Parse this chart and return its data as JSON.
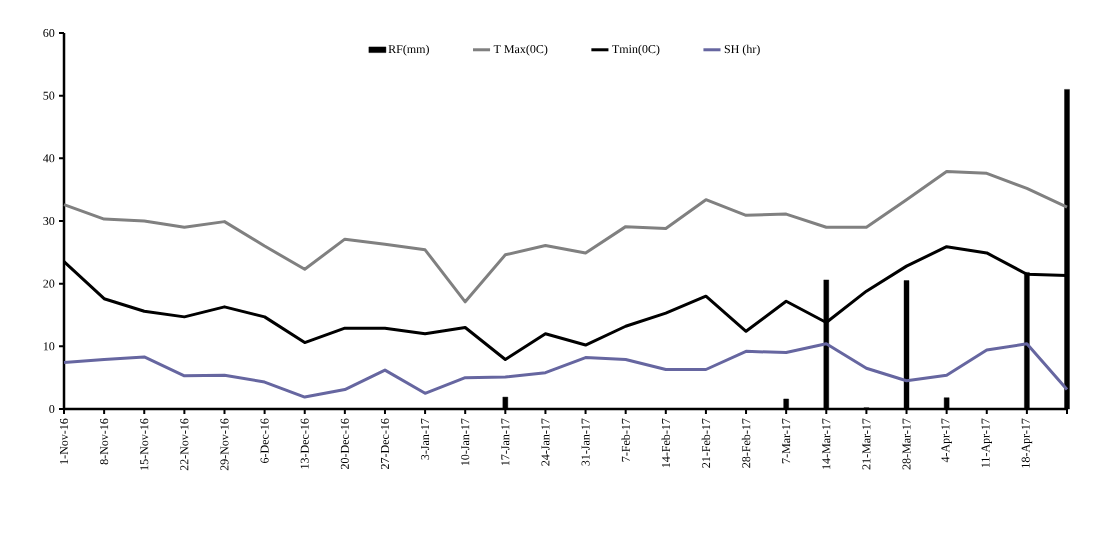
{
  "chart_data": {
    "type": "line",
    "categories": [
      "1-Nov-16",
      "8-Nov-16",
      "15-Nov-16",
      "22-Nov-16",
      "29-Nov-16",
      "6-Dec-16",
      "13-Dec-16",
      "20-Dec-16",
      "27-Dec-16",
      "3-Jan-17",
      "10-Jan-17",
      "17-Jan-17",
      "24-Jan-17",
      "31-Jan-17",
      "7-Feb-17",
      "14-Feb-17",
      "21-Feb-17",
      "28-Feb-17",
      "7-Mar-17",
      "14-Mar-17",
      "21-Mar-17",
      "28-Mar-17",
      "4-Apr-17",
      "11-Apr-17",
      "18-Apr-17",
      null
    ],
    "series": [
      {
        "name": "RF(mm)",
        "type": "bar",
        "color": "#000000",
        "values": [
          0,
          0,
          0,
          0,
          0,
          0,
          0,
          0,
          0,
          0,
          0,
          1.9,
          0,
          0,
          0,
          0,
          0,
          0,
          1.6,
          20.6,
          0.2,
          20.5,
          1.8,
          0,
          21.8,
          51.0
        ]
      },
      {
        "name": "T Max(0C)",
        "color": "#808080",
        "values": [
          32.6,
          30.3,
          30.0,
          29.0,
          29.9,
          26.0,
          22.3,
          27.1,
          26.3,
          25.4,
          17.1,
          24.6,
          26.1,
          24.9,
          29.1,
          28.8,
          33.4,
          30.9,
          31.1,
          29.0,
          29.0,
          33.4,
          37.9,
          37.6,
          35.2,
          32.2
        ]
      },
      {
        "name": "Tmin(0C)",
        "color": "#000000",
        "values": [
          23.5,
          17.6,
          15.6,
          14.7,
          16.3,
          14.7,
          10.6,
          12.9,
          12.9,
          12.0,
          13.0,
          7.9,
          12.0,
          10.2,
          13.2,
          15.3,
          18.0,
          12.4,
          17.2,
          13.8,
          18.8,
          22.8,
          25.9,
          24.9,
          21.5,
          21.3
        ]
      },
      {
        "name": "SH (hr)",
        "color": "#6666a0",
        "values": [
          7.4,
          7.9,
          8.3,
          5.3,
          5.4,
          4.3,
          1.9,
          3.1,
          6.2,
          2.5,
          5.0,
          5.1,
          5.8,
          8.2,
          7.9,
          6.3,
          6.3,
          9.2,
          9.0,
          10.4,
          6.5,
          4.5,
          5.4,
          9.4,
          10.4,
          3.1
        ]
      }
    ],
    "ylim": [
      0,
      60
    ],
    "yticks": [
      0,
      10,
      20,
      30,
      40,
      50,
      60
    ],
    "grid": false,
    "legend": "top",
    "marker": "none",
    "line_style": "solid"
  }
}
